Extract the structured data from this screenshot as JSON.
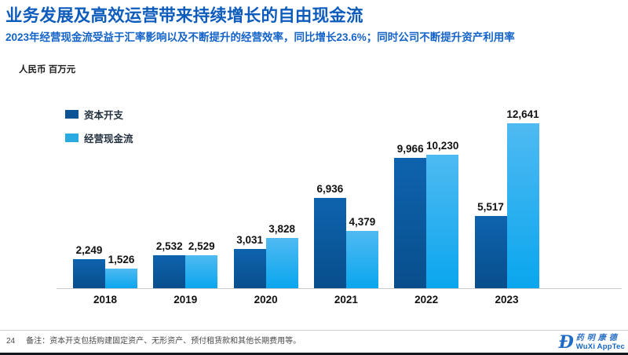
{
  "header": {
    "title": "业务发展及高效运营带来持续增长的自由现金流",
    "subtitle": "2023年经营现金流受益于汇率影响以及不断提升的经营效率，同比增长23.6%；同时公司不断提升资产利用率"
  },
  "chart_data": {
    "type": "bar",
    "unit_label": "人民币 百万元",
    "categories": [
      "2018",
      "2019",
      "2020",
      "2021",
      "2022",
      "2023"
    ],
    "series": [
      {
        "name": "资本开支",
        "values": [
          2249,
          2532,
          3031,
          6936,
          9966,
          5517
        ],
        "labels": [
          "2,249",
          "2,532",
          "3,031",
          "6,936",
          "9,966",
          "5,517"
        ],
        "color": "#0b5394",
        "color_top": "#0e63ae",
        "color_bottom": "#084e8c"
      },
      {
        "name": "经营现金流",
        "values": [
          1526,
          2529,
          3828,
          4379,
          10230,
          12641
        ],
        "labels": [
          "1,526",
          "2,529",
          "3,828",
          "4,379",
          "10,230",
          "12,641"
        ],
        "color": "#29abe2",
        "color_top": "#4fbaf2",
        "color_bottom": "#0aa6ee"
      }
    ],
    "ylim": [
      0,
      13000
    ],
    "legend_position": "top-left",
    "grid": false,
    "data_labels": true
  },
  "colors": {
    "title_blue": "#0d5cbd",
    "subtitle_blue": "#1463c8",
    "axis_line": "#c9c9c9"
  },
  "footer": {
    "page_number": "24",
    "note": "备注：资本开支包括购建固定资产、无形资产、预付租赁款和其他长期费用等。",
    "logo": {
      "mark": "Đ",
      "chinese": "药明康德",
      "english": "WuXi AppTec"
    }
  }
}
